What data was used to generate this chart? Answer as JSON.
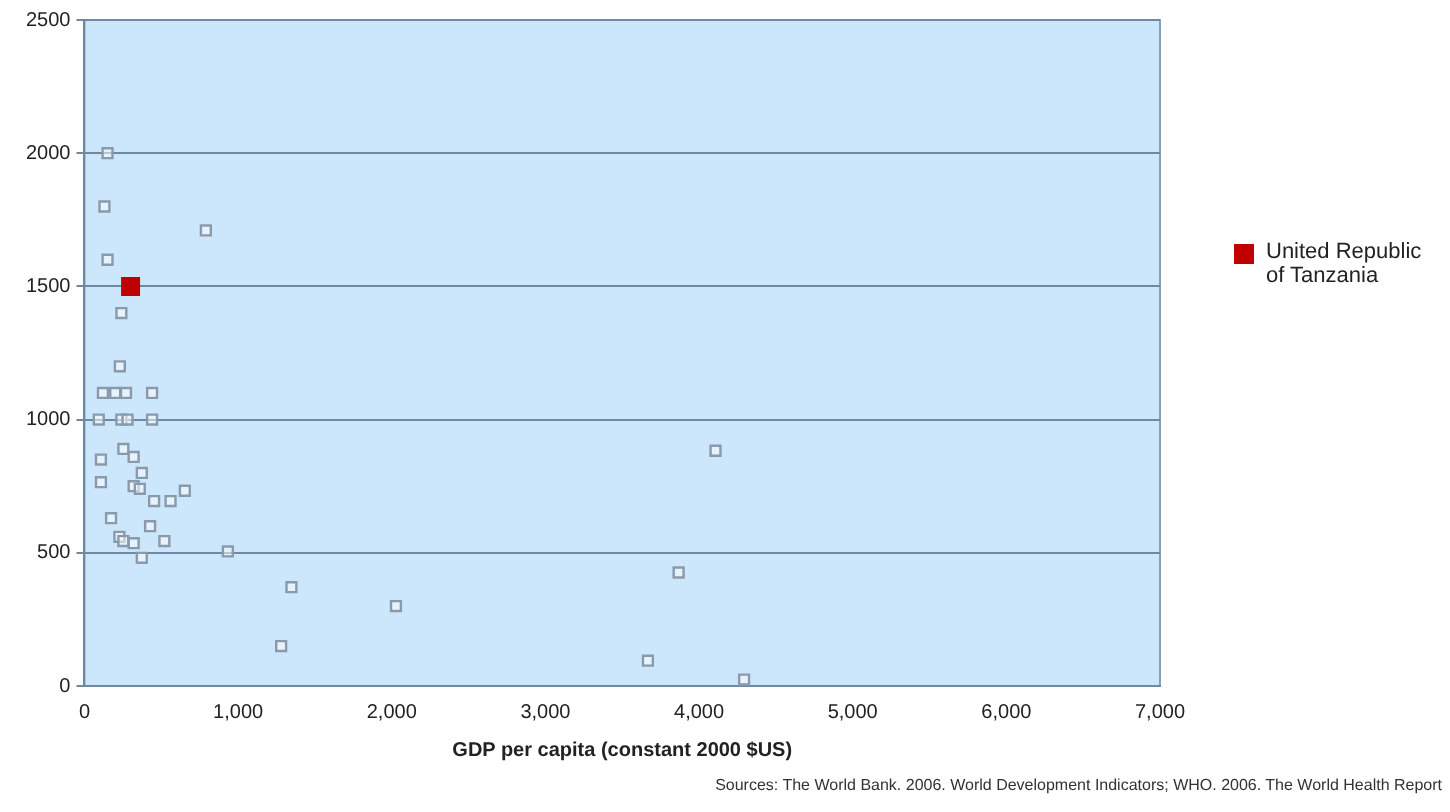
{
  "chart_data": {
    "type": "scatter",
    "xlabel": "GDP per capita (constant 2000 $US)",
    "annotations": [
      "Sources: The World Bank. 2006. World Development Indicators; WHO. 2006. The World Health Report"
    ],
    "xlim": [
      0,
      7000
    ],
    "xticks": [
      0,
      {
        "value": 1000,
        "label": "1,000"
      },
      {
        "value": 2000,
        "label": "2,000"
      },
      {
        "value": 3000,
        "label": "3,000"
      },
      {
        "value": 4000,
        "label": "4,000"
      },
      {
        "value": 5000,
        "label": "5,000"
      },
      {
        "value": 6000,
        "label": "6,000"
      },
      {
        "value": 7000,
        "label": "7,000"
      }
    ],
    "ylim": [
      0,
      2500
    ],
    "yticks": [
      0,
      500,
      1000,
      1500,
      2000,
      2500
    ],
    "grid": "y",
    "legend": "right",
    "marker": "square",
    "series": [
      {
        "color": "#8a9aaa",
        "x": [
          150,
          130,
          150,
          790,
          240,
          230,
          120,
          200,
          270,
          440,
          93,
          240,
          280,
          440,
          253,
          320,
          107,
          373,
          107,
          320,
          360,
          453,
          560,
          653,
          173,
          427,
          520,
          227,
          253,
          320,
          373,
          933,
          1347,
          1280,
          2027,
          3667,
          3867,
          4107,
          4293
        ],
        "values": [
          2000,
          1800,
          1600,
          1710,
          1400,
          1200,
          1100,
          1100,
          1100,
          1100,
          1000,
          1000,
          1000,
          1000,
          890,
          860,
          850,
          800,
          765,
          750,
          740,
          694,
          694,
          733,
          630,
          600,
          544,
          560,
          544,
          536,
          481,
          505,
          371,
          150,
          300,
          95,
          426,
          883,
          24
        ]
      },
      {
        "name": "United Republic of Tanzania",
        "color": "#c00000",
        "x": [
          300
        ],
        "values": [
          1500
        ]
      }
    ]
  }
}
